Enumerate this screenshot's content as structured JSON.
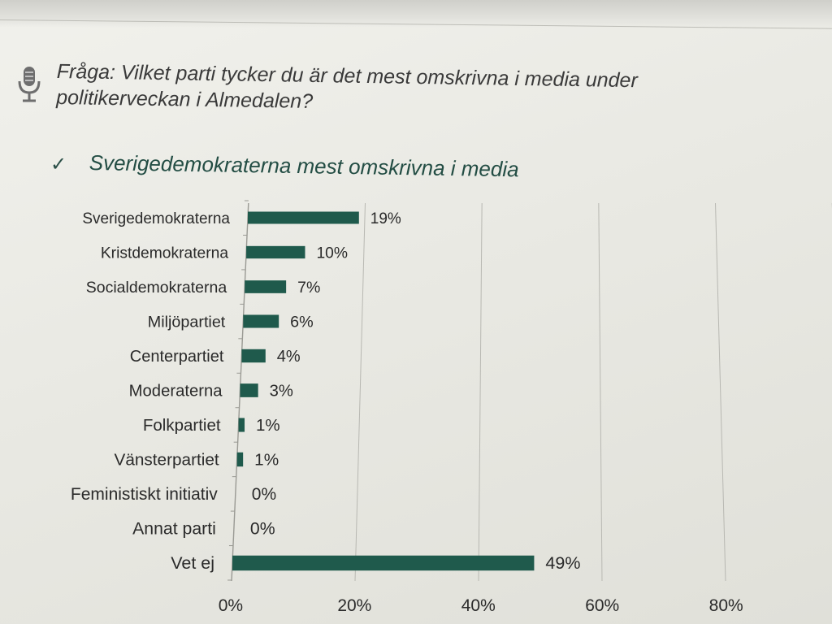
{
  "question": {
    "line1": "Fråga: Vilket parti tycker du är det mest omskrivna i media under",
    "line2": "politikerveckan i Almedalen?"
  },
  "headline": {
    "check": "✓",
    "text": "Sverigedemokraterna mest omskrivna i media"
  },
  "icons": {
    "question": "microphone-icon",
    "headline": "checkmark-icon"
  },
  "colors": {
    "bar": "#1f5a4c",
    "text": "#2a2a2a",
    "grid": "#b8b8b2"
  },
  "chart_data": {
    "type": "bar",
    "orientation": "horizontal",
    "categories": [
      "Sverigedemokraterna",
      "Kristdemokraterna",
      "Socialdemokraterna",
      "Miljöpartiet",
      "Centerpartiet",
      "Moderaterna",
      "Folkpartiet",
      "Vänsterpartiet",
      "Feministiskt initiativ",
      "Annat parti",
      "Vet ej"
    ],
    "values": [
      19,
      10,
      7,
      6,
      4,
      3,
      1,
      1,
      0,
      0,
      49
    ],
    "value_labels": [
      "19%",
      "10%",
      "7%",
      "6%",
      "4%",
      "3%",
      "1%",
      "1%",
      "0%",
      "0%",
      "49%"
    ],
    "xticks": [
      "0%",
      "20%",
      "40%",
      "60%",
      "80%"
    ],
    "xlim": [
      0,
      100
    ],
    "grid": true,
    "legend": false
  }
}
